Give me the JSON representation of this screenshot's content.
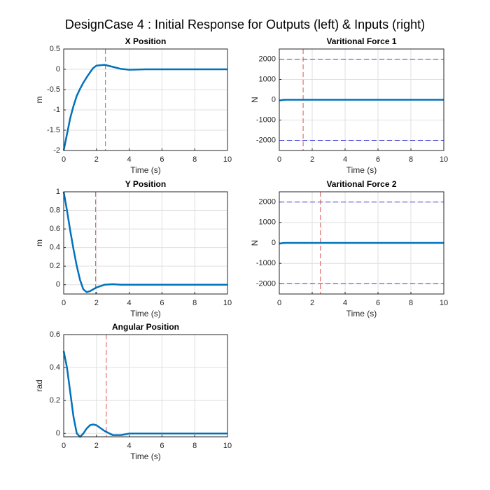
{
  "title": "DesignCase 4 : Initial Response for Outputs (left) & Inputs (right)",
  "chart_data": [
    {
      "type": "line",
      "title": "X Position",
      "xlabel": "Time (s)",
      "ylabel": "m",
      "x": [
        0,
        0.2,
        0.4,
        0.6,
        0.8,
        1.0,
        1.2,
        1.4,
        1.6,
        1.8,
        2.0,
        2.5,
        3.0,
        3.5,
        4,
        5,
        6,
        7,
        8,
        9,
        10
      ],
      "series": [
        {
          "color": "#0072bd",
          "values": [
            -2,
            -1.6,
            -1.2,
            -0.9,
            -0.65,
            -0.48,
            -0.33,
            -0.2,
            -0.08,
            0.03,
            0.09,
            0.11,
            0.06,
            0.01,
            -0.01,
            0,
            0,
            0,
            0,
            0,
            0
          ]
        }
      ],
      "vlines": [
        2.55
      ],
      "vline_color": "#d95353",
      "xlim": [
        0,
        10
      ],
      "ylim": [
        -2,
        0.5
      ],
      "xticks": [
        0,
        2,
        4,
        6,
        8,
        10
      ],
      "yticks": [
        -2,
        -1.5,
        -1,
        -0.5,
        0,
        0.5
      ],
      "grid": true
    },
    {
      "type": "line",
      "title": "Varitional Force 1",
      "xlabel": "Time (s)",
      "ylabel": "N",
      "x": [
        0,
        0.2,
        0.4,
        1,
        2,
        4,
        6,
        8,
        10
      ],
      "series": [
        {
          "color": "#0072bd",
          "values": [
            -40,
            -10,
            0,
            0,
            0,
            0,
            0,
            0,
            0
          ]
        }
      ],
      "vlines": [
        1.45
      ],
      "vline_color": "#d95353",
      "hlines": [
        2000,
        -2000
      ],
      "hline_color": "#3d3dd6",
      "xlim": [
        0,
        10
      ],
      "ylim": [
        -2500,
        2500
      ],
      "xticks": [
        0,
        2,
        4,
        6,
        8,
        10
      ],
      "yticks": [
        -2000,
        -1000,
        0,
        1000,
        2000
      ],
      "grid": true
    },
    {
      "type": "line",
      "title": "Y Position",
      "xlabel": "Time (s)",
      "ylabel": "m",
      "x": [
        0,
        0.2,
        0.4,
        0.6,
        0.8,
        1.0,
        1.2,
        1.4,
        1.6,
        1.8,
        2.0,
        2.5,
        3.0,
        3.5,
        4,
        5,
        6,
        7,
        8,
        9,
        10
      ],
      "series": [
        {
          "color": "#0072bd",
          "values": [
            1,
            0.8,
            0.58,
            0.38,
            0.2,
            0.05,
            -0.05,
            -0.08,
            -0.07,
            -0.05,
            -0.03,
            0,
            0.005,
            0,
            0,
            0,
            0,
            0,
            0,
            0,
            0
          ]
        }
      ],
      "vlines": [
        1.95
      ],
      "vline_color": "#d95353",
      "xlim": [
        0,
        10
      ],
      "ylim": [
        -0.1,
        1
      ],
      "xticks": [
        0,
        2,
        4,
        6,
        8,
        10
      ],
      "yticks": [
        0,
        0.2,
        0.4,
        0.6,
        0.8,
        1
      ],
      "grid": true
    },
    {
      "type": "line",
      "title": "Varitional Force 2",
      "xlabel": "Time (s)",
      "ylabel": "N",
      "x": [
        0,
        0.2,
        0.4,
        1,
        2,
        4,
        6,
        8,
        10
      ],
      "series": [
        {
          "color": "#0072bd",
          "values": [
            -40,
            -10,
            0,
            0,
            0,
            0,
            0,
            0,
            0
          ]
        }
      ],
      "vlines": [
        2.5
      ],
      "vline_color": "#d95353",
      "hlines": [
        2000,
        -2000
      ],
      "hline_color": "#3d3dd6",
      "xlim": [
        0,
        10
      ],
      "ylim": [
        -2500,
        2500
      ],
      "xticks": [
        0,
        2,
        4,
        6,
        8,
        10
      ],
      "yticks": [
        -2000,
        -1000,
        0,
        1000,
        2000
      ],
      "grid": true
    },
    {
      "type": "line",
      "title": "Angular Position",
      "xlabel": "Time (s)",
      "ylabel": "rad",
      "x": [
        0,
        0.2,
        0.4,
        0.6,
        0.8,
        1.0,
        1.2,
        1.4,
        1.6,
        1.8,
        2.0,
        2.5,
        3.0,
        3.5,
        4,
        5,
        6,
        7,
        8,
        9,
        10
      ],
      "series": [
        {
          "color": "#0072bd",
          "values": [
            0.5,
            0.4,
            0.25,
            0.1,
            0.0,
            -0.02,
            0.0,
            0.03,
            0.05,
            0.055,
            0.05,
            0.015,
            -0.01,
            -0.01,
            0,
            0,
            0,
            0,
            0,
            0,
            0
          ]
        }
      ],
      "vlines": [
        2.6
      ],
      "vline_color": "#d95353",
      "xlim": [
        0,
        10
      ],
      "ylim": [
        -0.02,
        0.6
      ],
      "xticks": [
        0,
        2,
        4,
        6,
        8,
        10
      ],
      "yticks": [
        0,
        0.2,
        0.4,
        0.6
      ],
      "grid": true
    }
  ]
}
